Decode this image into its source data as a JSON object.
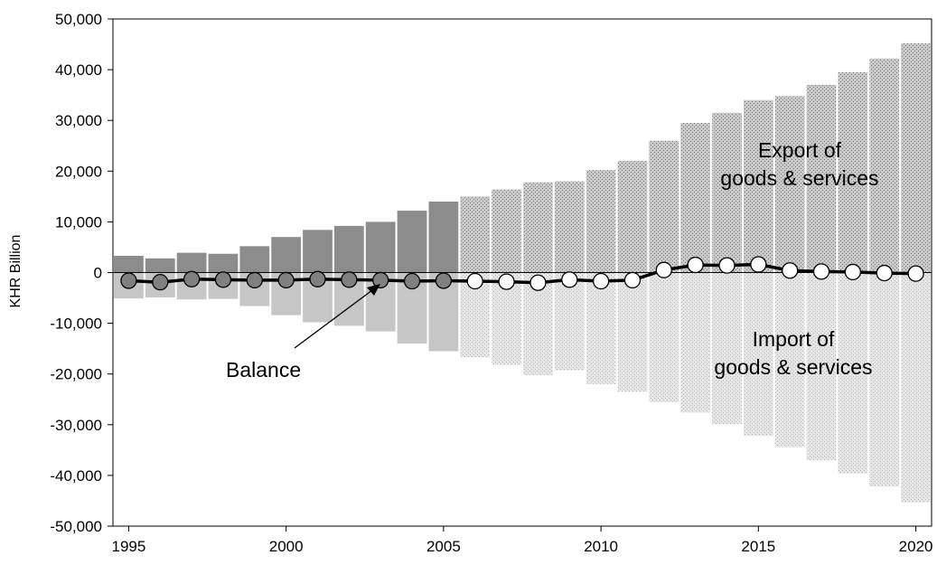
{
  "chart_data": {
    "type": "bar",
    "ylabel": "KHR Billion",
    "ylim": [
      -50000,
      50000
    ],
    "y_ticks": [
      "50,000",
      "40,000",
      "30,000",
      "20,000",
      "10,000",
      "0",
      "-10,000",
      "-20,000",
      "-30,000",
      "-40,000",
      "-50,000"
    ],
    "x_ticks": [
      "1995",
      "2000",
      "2005",
      "2010",
      "2015",
      "2020"
    ],
    "years": [
      1995,
      1996,
      1997,
      1998,
      1999,
      2000,
      2001,
      2002,
      2003,
      2004,
      2005,
      2006,
      2007,
      2008,
      2009,
      2010,
      2011,
      2012,
      2013,
      2014,
      2015,
      2016,
      2017,
      2018,
      2019,
      2020
    ],
    "series": [
      {
        "name": "Export of goods & services",
        "values": [
          3300,
          2800,
          3900,
          3700,
          5200,
          7000,
          8400,
          9200,
          10000,
          12200,
          14000,
          15000,
          16400,
          17800,
          18000,
          20200,
          22000,
          26000,
          29500,
          31500,
          34000,
          34800,
          37000,
          39500,
          42200,
          45200
        ]
      },
      {
        "name": "Import of goods & services",
        "values": [
          -5100,
          -4900,
          -5300,
          -5200,
          -6600,
          -8400,
          -9800,
          -10500,
          -11600,
          -14000,
          -15500,
          -16700,
          -18200,
          -20200,
          -19300,
          -22000,
          -23500,
          -25500,
          -27600,
          -29900,
          -32200,
          -34400,
          -37000,
          -39600,
          -42200,
          -45300
        ]
      },
      {
        "name": "Balance",
        "values": [
          -1600,
          -1900,
          -1300,
          -1400,
          -1500,
          -1500,
          -1300,
          -1400,
          -1500,
          -1700,
          -1600,
          -1700,
          -1800,
          -2000,
          -1400,
          -1700,
          -1500,
          500,
          1500,
          1400,
          1600,
          400,
          200,
          100,
          -100,
          -200
        ]
      }
    ],
    "annotations": {
      "export": [
        "Export of",
        "goods & services"
      ],
      "import": [
        "Import of",
        "goods & services"
      ],
      "balance": "Balance"
    },
    "colors": {
      "export_solid": "#8c8c8c",
      "export_pattern": "#b8b8b8",
      "import_solid": "#c6c6c6",
      "import_pattern": "#dedede",
      "line": "#000000",
      "marker_early": "#808080",
      "marker_late": "#ffffff"
    },
    "solid_until_year": 2005
  }
}
